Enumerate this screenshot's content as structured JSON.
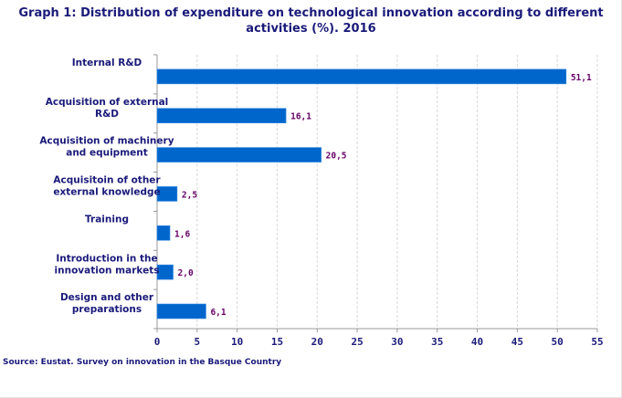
{
  "chart_data": {
    "type": "bar",
    "orientation": "horizontal",
    "title": "Graph 1: Distribution of expenditure on technological innovation according to different activities (%). 2016",
    "categories": [
      "Internal R&D",
      "Acquisition of external R&D",
      "Acquisition of machinery and equipment",
      "Acquisitoin of other external knowledge",
      "Training",
      "Introduction in the innovation markets",
      "Design and other preparations"
    ],
    "category_lines": [
      [
        "Internal R&D"
      ],
      [
        "Acquisition of external",
        "R&D"
      ],
      [
        "Acquisition of machinery",
        "and equipment"
      ],
      [
        "Acquisitoin of other",
        "external knowledge"
      ],
      [
        "Training"
      ],
      [
        "Introduction in the",
        "innovation markets"
      ],
      [
        "Design and other",
        "preparations"
      ]
    ],
    "values": [
      51.1,
      16.1,
      20.5,
      2.5,
      1.6,
      2.0,
      6.1
    ],
    "data_labels": [
      "51,1",
      "16,1",
      "20,5",
      "2,5",
      "1,6",
      "2,0",
      "6,1"
    ],
    "xlim": [
      0,
      55
    ],
    "xticks": [
      0,
      5,
      10,
      15,
      20,
      25,
      30,
      35,
      40,
      45,
      50,
      55
    ],
    "xlabel": "",
    "ylabel": "",
    "grid": "vertical dashed",
    "colors": {
      "bar": "#0066cc",
      "value_label": "#660066",
      "text": "#1a1a7a"
    }
  },
  "source": "Source: Eustat. Survey on innovation in the Basque Country"
}
